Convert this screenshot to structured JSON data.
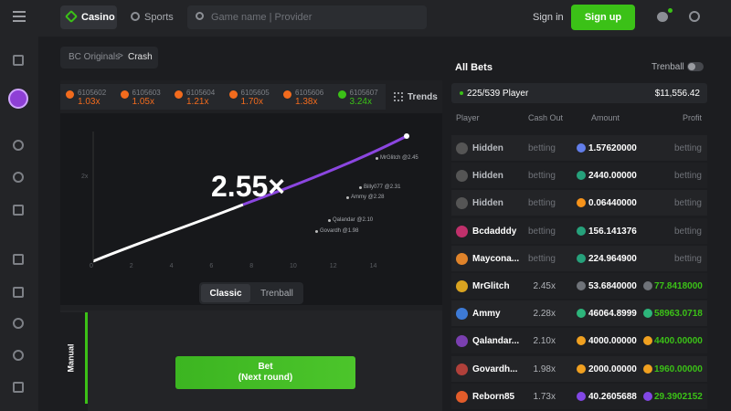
{
  "nav": {
    "casino": "Casino",
    "sports": "Sports",
    "search_placeholder": "Game name | Provider",
    "sign_in": "Sign in",
    "sign_up": "Sign up"
  },
  "breadcrumb": [
    "BC Originals",
    "Crash"
  ],
  "history": [
    {
      "id": "6105602",
      "multiplier": "1.03x",
      "color": "#f26b1d"
    },
    {
      "id": "6105603",
      "multiplier": "1.05x",
      "color": "#f26b1d"
    },
    {
      "id": "6105604",
      "multiplier": "1.21x",
      "color": "#f26b1d"
    },
    {
      "id": "6105605",
      "multiplier": "1.70x",
      "color": "#f26b1d"
    },
    {
      "id": "6105606",
      "multiplier": "1.38x",
      "color": "#f26b1d"
    },
    {
      "id": "6105607",
      "multiplier": "3.24x",
      "color": "#3bc117"
    }
  ],
  "trends": "Trends",
  "game": {
    "multiplier": "2.55×",
    "y_label": "2x",
    "x_ticks": [
      "0",
      "2",
      "4",
      "6",
      "8",
      "10",
      "12",
      "14"
    ],
    "cashouts": [
      "MrGlitch @2.45",
      "Billy077 @2.31",
      "Ammy @2.28",
      "Qalandar @2.10",
      "Govardh @1.98"
    ]
  },
  "tabs": [
    "Classic",
    "Trenball"
  ],
  "manual": "Manual",
  "bet_button": {
    "label": "Bet",
    "sub": "(Next round)"
  },
  "bets": {
    "title": "All Bets",
    "trenball": "Trenball",
    "player_count": "225/539 Player",
    "total": "$11,556.42",
    "columns": [
      "Player",
      "Cash Out",
      "Amount",
      "Profit"
    ],
    "rows": [
      {
        "player": "Hidden",
        "cash_out": "betting",
        "amount": "1.57620000",
        "profit": "betting",
        "coin": "#627eea",
        "avatar": "#555"
      },
      {
        "player": "Hidden",
        "cash_out": "betting",
        "amount": "2440.00000",
        "profit": "betting",
        "coin": "#26a17b",
        "avatar": "#555"
      },
      {
        "player": "Hidden",
        "cash_out": "betting",
        "amount": "0.06440000",
        "profit": "betting",
        "coin": "#f7931a",
        "avatar": "#555"
      },
      {
        "player": "Bcdadddy",
        "cash_out": "betting",
        "amount": "156.141376",
        "profit": "betting",
        "coin": "#26a17b",
        "avatar": "#c0306b"
      },
      {
        "player": "Maycona...",
        "cash_out": "betting",
        "amount": "224.964900",
        "profit": "betting",
        "coin": "#26a17b",
        "avatar": "#e0832a"
      },
      {
        "player": "MrGlitch",
        "cash_out": "2.45x",
        "amount": "53.6840000",
        "profit": "77.8418000",
        "coin": "#6f7379",
        "avatar": "#d9a320"
      },
      {
        "player": "Ammy",
        "cash_out": "2.28x",
        "amount": "46064.8999",
        "profit": "58963.0718",
        "coin": "#2db57b",
        "avatar": "#3d7ad6"
      },
      {
        "player": "Qalandar...",
        "cash_out": "2.10x",
        "amount": "4000.00000",
        "profit": "4400.00000",
        "coin": "#f0a020",
        "avatar": "#7a3fb0"
      },
      {
        "player": "Govardh...",
        "cash_out": "1.98x",
        "amount": "2000.00000",
        "profit": "1960.00000",
        "coin": "#f0a020",
        "avatar": "#b0403a"
      },
      {
        "player": "Reborn85",
        "cash_out": "1.73x",
        "amount": "40.2605688",
        "profit": "29.3902152",
        "coin": "#8247e5",
        "avatar": "#e25c2a"
      }
    ]
  }
}
